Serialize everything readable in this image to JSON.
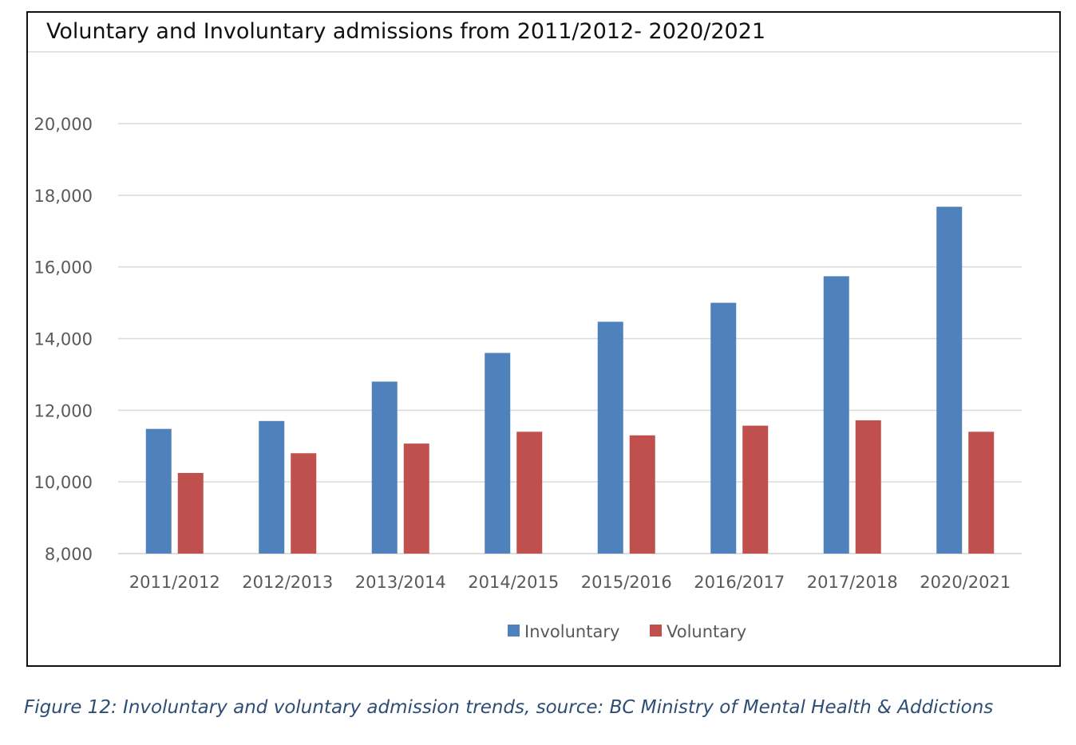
{
  "chart_data": {
    "type": "bar",
    "title": "Voluntary and Involuntary admissions from 2011/2012- 2020/2021",
    "categories": [
      "2011/2012",
      "2012/2013",
      "2013/2014",
      "2014/2015",
      "2015/2016",
      "2016/2017",
      "2017/2018",
      "2020/2021"
    ],
    "series": [
      {
        "name": "Involuntary",
        "color": "#4f81bd",
        "values": [
          11480,
          11700,
          12800,
          13600,
          14470,
          15000,
          15740,
          17680
        ]
      },
      {
        "name": "Voluntary",
        "color": "#c0504d",
        "values": [
          10250,
          10800,
          11070,
          11400,
          11300,
          11570,
          11720,
          11400
        ]
      }
    ],
    "ylim": [
      8000,
      20000
    ],
    "yticks": [
      "8,000",
      "10,000",
      "12,000",
      "14,000",
      "16,000",
      "18,000",
      "20,000"
    ],
    "ytick_values": [
      8000,
      10000,
      12000,
      14000,
      16000,
      18000,
      20000
    ],
    "xlabel": "",
    "ylabel": "",
    "grid": true,
    "legend_position": "bottom"
  },
  "caption": "Figure 12: Involuntary and voluntary admission trends, source: BC Ministry of Mental Health & Addictions"
}
